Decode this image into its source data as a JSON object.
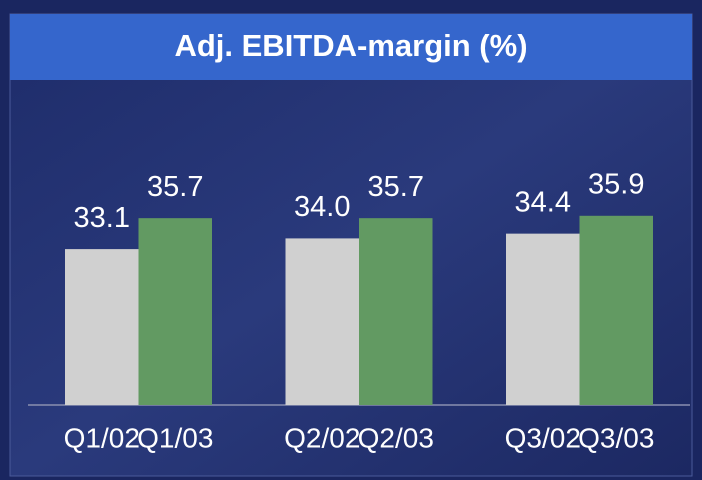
{
  "chart_data": {
    "type": "bar",
    "title": "Adj. EBITDA-margin (%)",
    "categories": [
      "Q1/02",
      "Q1/03",
      "Q2/02",
      "Q2/03",
      "Q3/02",
      "Q3/03"
    ],
    "values": [
      33.1,
      35.7,
      34.0,
      35.7,
      34.4,
      35.9
    ],
    "value_labels": [
      "33.1",
      "35.7",
      "34.0",
      "35.7",
      "34.4",
      "35.9"
    ],
    "colors": [
      "#d0d0d0",
      "#629a62",
      "#d0d0d0",
      "#629a62",
      "#d0d0d0",
      "#629a62"
    ],
    "ylim": [
      20,
      40
    ]
  }
}
